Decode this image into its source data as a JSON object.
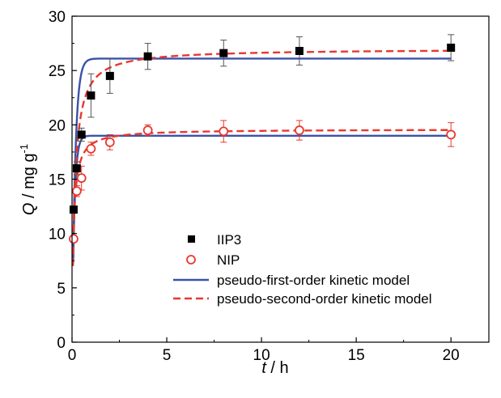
{
  "chart_data": {
    "type": "scatter",
    "xlabel": {
      "var": "t",
      "unit": " / h"
    },
    "ylabel": {
      "var": "Q",
      "unit": " / mg g",
      "sup": "-1"
    },
    "xlim": [
      0,
      22
    ],
    "ylim": [
      0,
      30
    ],
    "xticks": [
      0,
      5,
      10,
      15,
      20
    ],
    "yticks": [
      0,
      5,
      10,
      15,
      20,
      25,
      30
    ],
    "grid": false,
    "legend_position": "center-left",
    "series": [
      {
        "name": "IIP3",
        "kind": "points",
        "marker": "filled-square",
        "color": "#000000",
        "x": [
          0.083,
          0.25,
          0.5,
          1,
          2,
          4,
          8,
          12,
          20
        ],
        "y": [
          12.2,
          16.0,
          19.1,
          22.7,
          24.5,
          26.3,
          26.6,
          26.8,
          27.1
        ],
        "err": [
          0,
          0.6,
          0.6,
          2.0,
          1.6,
          1.2,
          1.2,
          1.3,
          1.2
        ]
      },
      {
        "name": "NIP",
        "kind": "points",
        "marker": "open-circle",
        "color": "#e8382f",
        "x": [
          0.083,
          0.25,
          0.5,
          1,
          2,
          4,
          8,
          12,
          20
        ],
        "y": [
          9.5,
          13.9,
          15.1,
          17.8,
          18.4,
          19.5,
          19.4,
          19.5,
          19.1
        ],
        "err": [
          0,
          0.5,
          1.1,
          0.6,
          0.7,
          0.5,
          1.0,
          0.9,
          1.1
        ]
      },
      {
        "name": "pseudo-first-order kinetic model",
        "kind": "line",
        "dash": "solid",
        "color": "#3a52a8",
        "curves": [
          {
            "qe": 26.1,
            "k1": 6.0
          },
          {
            "qe": 19.0,
            "k1": 8.0
          }
        ]
      },
      {
        "name": "pseudo-second-order kinetic model",
        "kind": "line",
        "dash": "dashed",
        "color": "#e8382f",
        "curves": [
          {
            "qe": 27.0,
            "k2": 0.27
          },
          {
            "qe": 19.6,
            "k2": 0.65
          }
        ]
      }
    ]
  }
}
